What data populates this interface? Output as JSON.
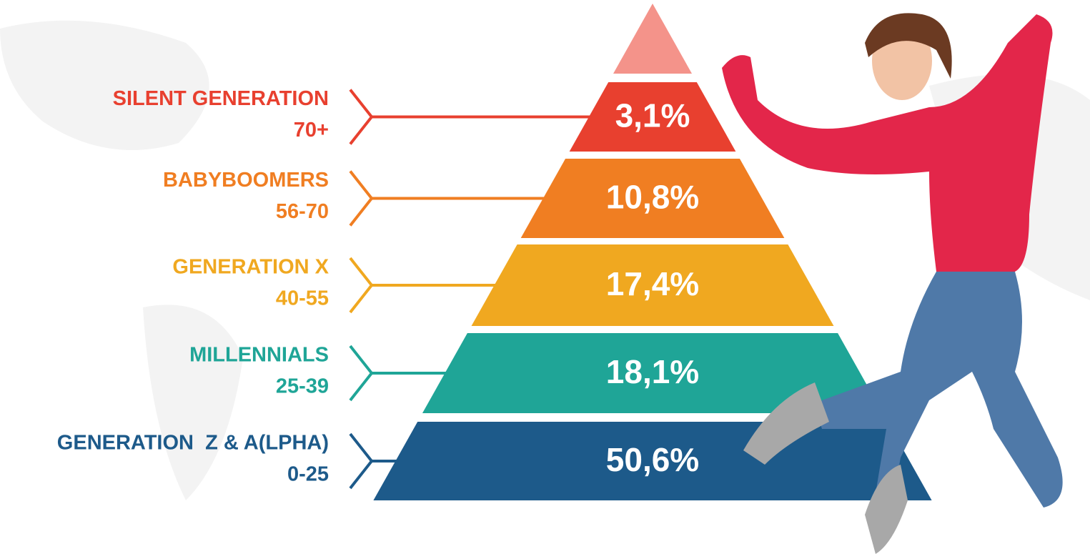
{
  "levels": [
    {
      "name": "SILENT GENERATION",
      "ages": "70+",
      "share": "3,1%"
    },
    {
      "name": "BABYBOOMERS",
      "ages": "56-70",
      "share": "10,8%"
    },
    {
      "name": "GENERATION X",
      "ages": "40-55",
      "share": "17,4%"
    },
    {
      "name": "MILLENNIALS",
      "ages": "25-39",
      "share": "18,1%"
    },
    {
      "name": "GENERATION  Z & A(LPHA)",
      "ages": "0-25",
      "share": "50,6%"
    }
  ]
}
